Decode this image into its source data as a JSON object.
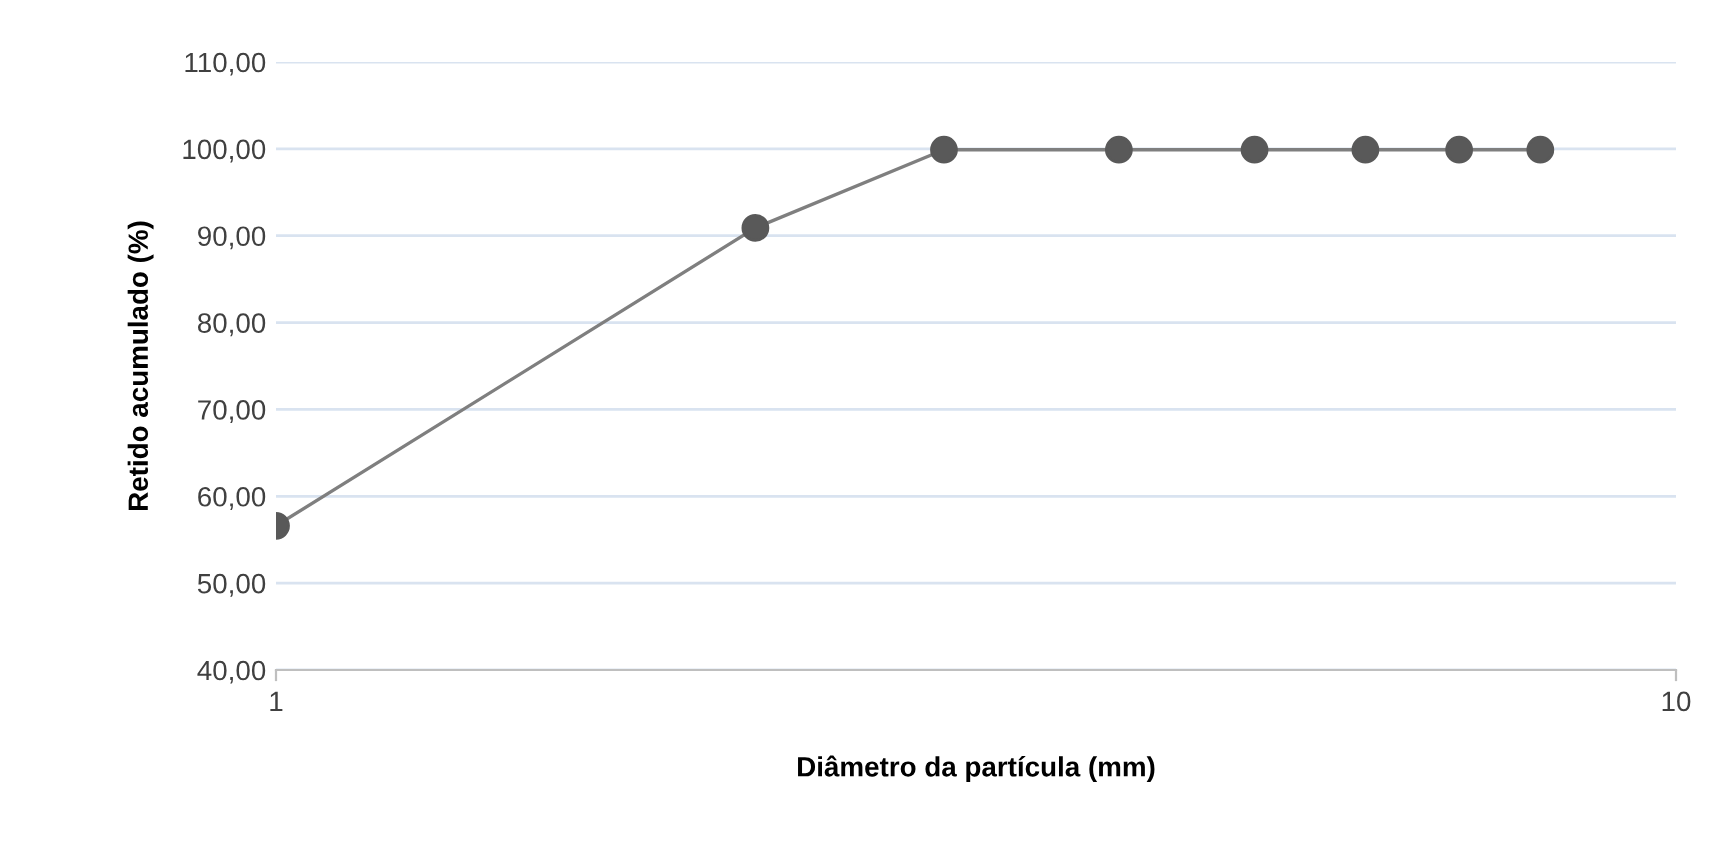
{
  "chart_data": {
    "type": "line",
    "xlabel": "Diâmetro da partícula (mm)",
    "ylabel": "Retido acumulado (%)",
    "x": [
      1,
      2.2,
      3,
      4,
      5,
      6,
      7,
      8
    ],
    "series": [
      {
        "color": "#595959",
        "values": [
          56.6,
          90.9,
          99.9,
          99.9,
          99.9,
          99.9,
          99.9,
          99.9
        ]
      }
    ],
    "log": "x",
    "xlim": [
      1,
      10
    ],
    "xticks": [
      1,
      10
    ],
    "ylim": [
      40,
      110
    ],
    "yticks": [
      {
        "value": 40,
        "label": "40,00"
      },
      {
        "value": 50,
        "label": "50,00"
      },
      {
        "value": 60,
        "label": "60,00"
      },
      {
        "value": 70,
        "label": "70,00"
      },
      {
        "value": 80,
        "label": "80,00"
      },
      {
        "value": 90,
        "label": "90,00"
      },
      {
        "value": 100,
        "label": "100,00"
      },
      {
        "value": 110,
        "label": "110,00"
      }
    ],
    "grid": "y",
    "marker": "circle",
    "line_style": "solid",
    "legend": false
  }
}
